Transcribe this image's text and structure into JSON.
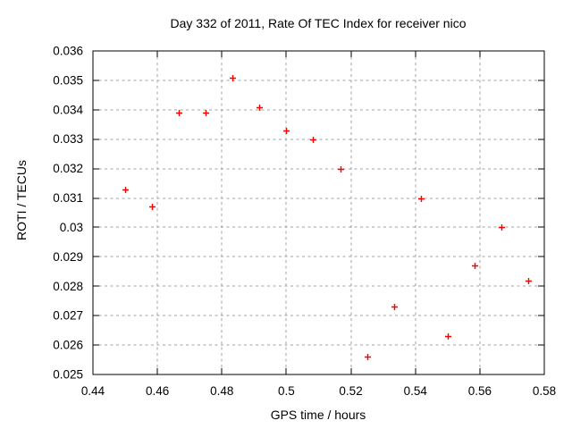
{
  "chart_data": {
    "type": "scatter",
    "title": "Day 332 of 2011, Rate Of TEC Index for receiver nico",
    "xlabel": "GPS time / hours",
    "ylabel": "ROTI / TECUs",
    "xlim": [
      0.44,
      0.58
    ],
    "ylim": [
      0.025,
      0.036
    ],
    "grid": true,
    "legend": "none",
    "marker": {
      "shape": "plus",
      "color": "#ff0000",
      "size": 7
    },
    "x_ticks": [
      {
        "v": 0.44,
        "label": "0.44"
      },
      {
        "v": 0.46,
        "label": "0.46"
      },
      {
        "v": 0.48,
        "label": "0.48"
      },
      {
        "v": 0.5,
        "label": "0.5"
      },
      {
        "v": 0.52,
        "label": "0.52"
      },
      {
        "v": 0.54,
        "label": "0.54"
      },
      {
        "v": 0.56,
        "label": "0.56"
      },
      {
        "v": 0.58,
        "label": "0.58"
      }
    ],
    "y_ticks": [
      {
        "v": 0.025,
        "label": "0.025"
      },
      {
        "v": 0.026,
        "label": "0.026"
      },
      {
        "v": 0.027,
        "label": "0.027"
      },
      {
        "v": 0.028,
        "label": "0.028"
      },
      {
        "v": 0.029,
        "label": "0.029"
      },
      {
        "v": 0.03,
        "label": "0.03"
      },
      {
        "v": 0.031,
        "label": "0.031"
      },
      {
        "v": 0.032,
        "label": "0.032"
      },
      {
        "v": 0.033,
        "label": "0.033"
      },
      {
        "v": 0.034,
        "label": "0.034"
      },
      {
        "v": 0.035,
        "label": "0.035"
      },
      {
        "v": 0.036,
        "label": "0.036"
      }
    ],
    "series": [
      {
        "name": "ROTI",
        "points": [
          [
            0.45,
            0.0313
          ],
          [
            0.458333,
            0.0307
          ],
          [
            0.466667,
            0.0339
          ],
          [
            0.475,
            0.0339
          ],
          [
            0.483333,
            0.0351
          ],
          [
            0.491667,
            0.0341
          ],
          [
            0.5,
            0.0333
          ],
          [
            0.508333,
            0.033
          ],
          [
            0.516667,
            0.032
          ],
          [
            0.525,
            0.0256
          ],
          [
            0.533333,
            0.0273
          ],
          [
            0.541667,
            0.031
          ],
          [
            0.55,
            0.0263
          ],
          [
            0.558333,
            0.0287
          ],
          [
            0.566667,
            0.03
          ],
          [
            0.575,
            0.0282
          ]
        ]
      }
    ]
  },
  "colors": {
    "background": "#ffffff",
    "axis": "#000000",
    "grid": "#a0a0a0",
    "marker": "#ff0000",
    "text": "#000000"
  }
}
